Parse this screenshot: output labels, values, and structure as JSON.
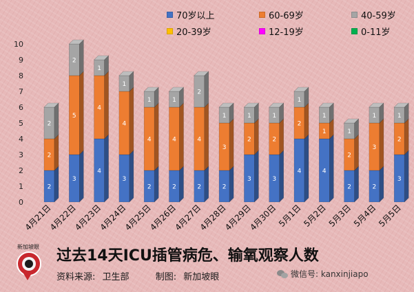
{
  "chart_data": {
    "type": "bar",
    "stacked": true,
    "categories": [
      "4月21日",
      "4月22日",
      "4月23日",
      "4月24日",
      "4月25日",
      "4月26日",
      "4月27日",
      "4月28日",
      "4月29日",
      "4月30日",
      "5月1日",
      "5月2日",
      "5月3日",
      "5月4日",
      "5月5日"
    ],
    "series": [
      {
        "name": "70岁以上",
        "color": "#4472c4",
        "values": [
          2,
          3,
          4,
          3,
          2,
          2,
          2,
          2,
          3,
          3,
          4,
          4,
          2,
          2,
          3
        ]
      },
      {
        "name": "60-69岁",
        "color": "#ed7d31",
        "values": [
          2,
          5,
          4,
          4,
          4,
          4,
          4,
          3,
          2,
          2,
          2,
          1,
          2,
          3,
          2
        ]
      },
      {
        "name": "40-59岁",
        "color": "#a5a5a5",
        "values": [
          2,
          2,
          1,
          1,
          1,
          1,
          2,
          1,
          1,
          1,
          1,
          1,
          1,
          1,
          1
        ]
      },
      {
        "name": "20-39岁",
        "color": "#ffc000",
        "values": [
          0,
          0,
          0,
          0,
          0,
          0,
          0,
          0,
          0,
          0,
          0,
          0,
          0,
          0,
          0
        ]
      },
      {
        "name": "12-19岁",
        "color": "#ff00ff",
        "values": [
          0,
          0,
          0,
          0,
          0,
          0,
          0,
          0,
          0,
          0,
          0,
          0,
          0,
          0,
          0
        ]
      },
      {
        "name": "0-11岁",
        "color": "#00b050",
        "values": [
          0,
          0,
          0,
          0,
          0,
          0,
          0,
          0,
          0,
          0,
          0,
          0,
          0,
          0,
          0
        ]
      }
    ],
    "ylim": [
      0,
      10
    ],
    "yticks": [
      "0",
      "1",
      "2",
      "3",
      "4",
      "5",
      "6",
      "7",
      "8",
      "9",
      "10"
    ],
    "legend_position": "top-right",
    "grid": false
  },
  "footer": {
    "title": "过去14天ICU插管病危、输氧观察人数",
    "source_label": "资料来源:",
    "source_value": "卫生部",
    "maker_label": "制图:",
    "maker_value": "新加坡眼",
    "logo_caption": "新加坡眼",
    "wechat_handle": "微信号: kanxinjiapo"
  }
}
